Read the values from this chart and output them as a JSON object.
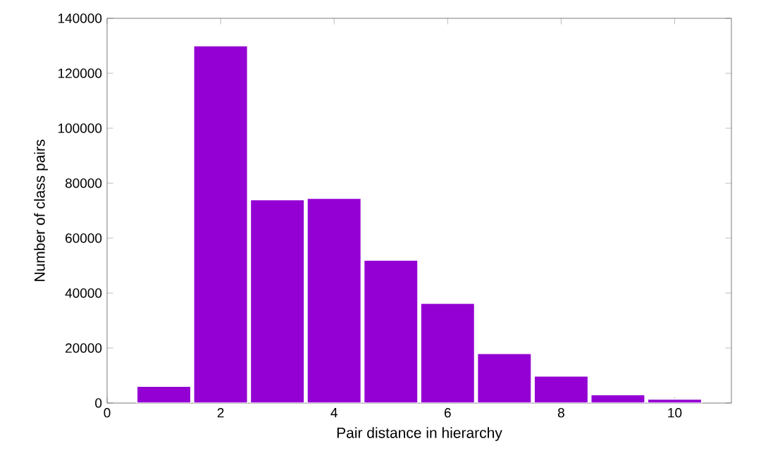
{
  "chart_data": {
    "type": "bar",
    "xlabel": "Pair distance in hierarchy",
    "ylabel": "Number of class pairs",
    "x": [
      1,
      2,
      3,
      4,
      5,
      6,
      7,
      8,
      9,
      10
    ],
    "values": [
      6100,
      130000,
      74000,
      74500,
      52000,
      36300,
      18000,
      9800,
      3000,
      1400
    ],
    "color": "#9400d3",
    "xlim": [
      0,
      11
    ],
    "xticks": [
      0,
      2,
      4,
      6,
      8,
      10
    ],
    "ylim": [
      0,
      140000
    ],
    "yticks": [
      0,
      20000,
      40000,
      60000,
      80000,
      100000,
      120000,
      140000
    ]
  }
}
